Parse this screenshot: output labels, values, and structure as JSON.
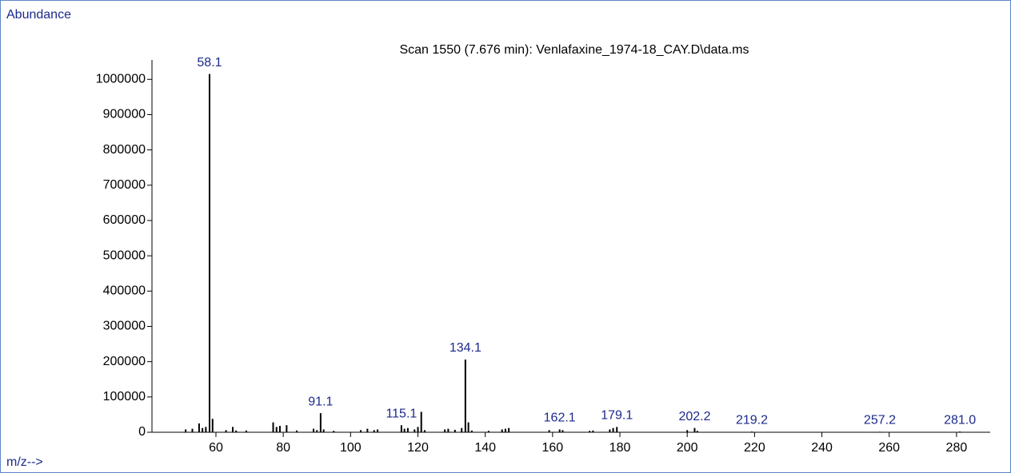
{
  "chart_data": {
    "type": "stem",
    "title": "Scan 1550 (7.676 min): Venlafaxine_1974-18_CAY.D\\data.ms",
    "y_label": "Abundance",
    "x_label": "m/z-->",
    "color": "#000000",
    "label_color": "#1c2a8c",
    "x": [
      51,
      53,
      55,
      56,
      57,
      58.1,
      59,
      63,
      65,
      66,
      69,
      77,
      78,
      79,
      81,
      84,
      89,
      90,
      91.1,
      92,
      95,
      103,
      105,
      107,
      108,
      115.1,
      116,
      117,
      119,
      120,
      121,
      122,
      128,
      129,
      131,
      133,
      134.1,
      135,
      136,
      141,
      145,
      146,
      147,
      159,
      162.1,
      163,
      171,
      172,
      177,
      178,
      179.1,
      200,
      202.2,
      203,
      219.2,
      257.2,
      281.0
    ],
    "values": [
      8000,
      10000,
      25000,
      12000,
      15000,
      1015000,
      38000,
      6000,
      15000,
      5000,
      5000,
      28000,
      15000,
      18000,
      20000,
      5000,
      10000,
      6000,
      54000,
      8000,
      4000,
      6000,
      10000,
      6000,
      8000,
      20000,
      10000,
      12000,
      8000,
      15000,
      58000,
      6000,
      8000,
      10000,
      7000,
      12000,
      206000,
      28000,
      5000,
      4000,
      8000,
      10000,
      12000,
      6000,
      8000,
      6000,
      4000,
      5000,
      8000,
      12000,
      15000,
      6000,
      12000,
      4000,
      2000,
      1500,
      2000
    ],
    "annotations": [
      {
        "x": 58.1,
        "y": 1015000,
        "label": "58.1"
      },
      {
        "x": 91.1,
        "y": 54000,
        "label": "91.1"
      },
      {
        "x": 115.1,
        "y": 20000,
        "label": "115.1"
      },
      {
        "x": 134.1,
        "y": 206000,
        "label": "134.1"
      },
      {
        "x": 162.1,
        "y": 8000,
        "label": "162.1"
      },
      {
        "x": 179.1,
        "y": 15000,
        "label": "179.1"
      },
      {
        "x": 202.2,
        "y": 12000,
        "label": "202.2"
      },
      {
        "x": 219.2,
        "y": 2000,
        "label": "219.2"
      },
      {
        "x": 257.2,
        "y": 1500,
        "label": "257.2"
      },
      {
        "x": 281.0,
        "y": 2000,
        "label": "281.0"
      }
    ],
    "xlim": [
      41,
      290
    ],
    "ylim": [
      0,
      1055000
    ],
    "xticks": [
      60,
      80,
      100,
      120,
      140,
      160,
      180,
      200,
      220,
      240,
      260,
      280
    ],
    "yticks": [
      0,
      100000,
      200000,
      300000,
      400000,
      500000,
      600000,
      700000,
      800000,
      900000,
      1000000
    ]
  }
}
